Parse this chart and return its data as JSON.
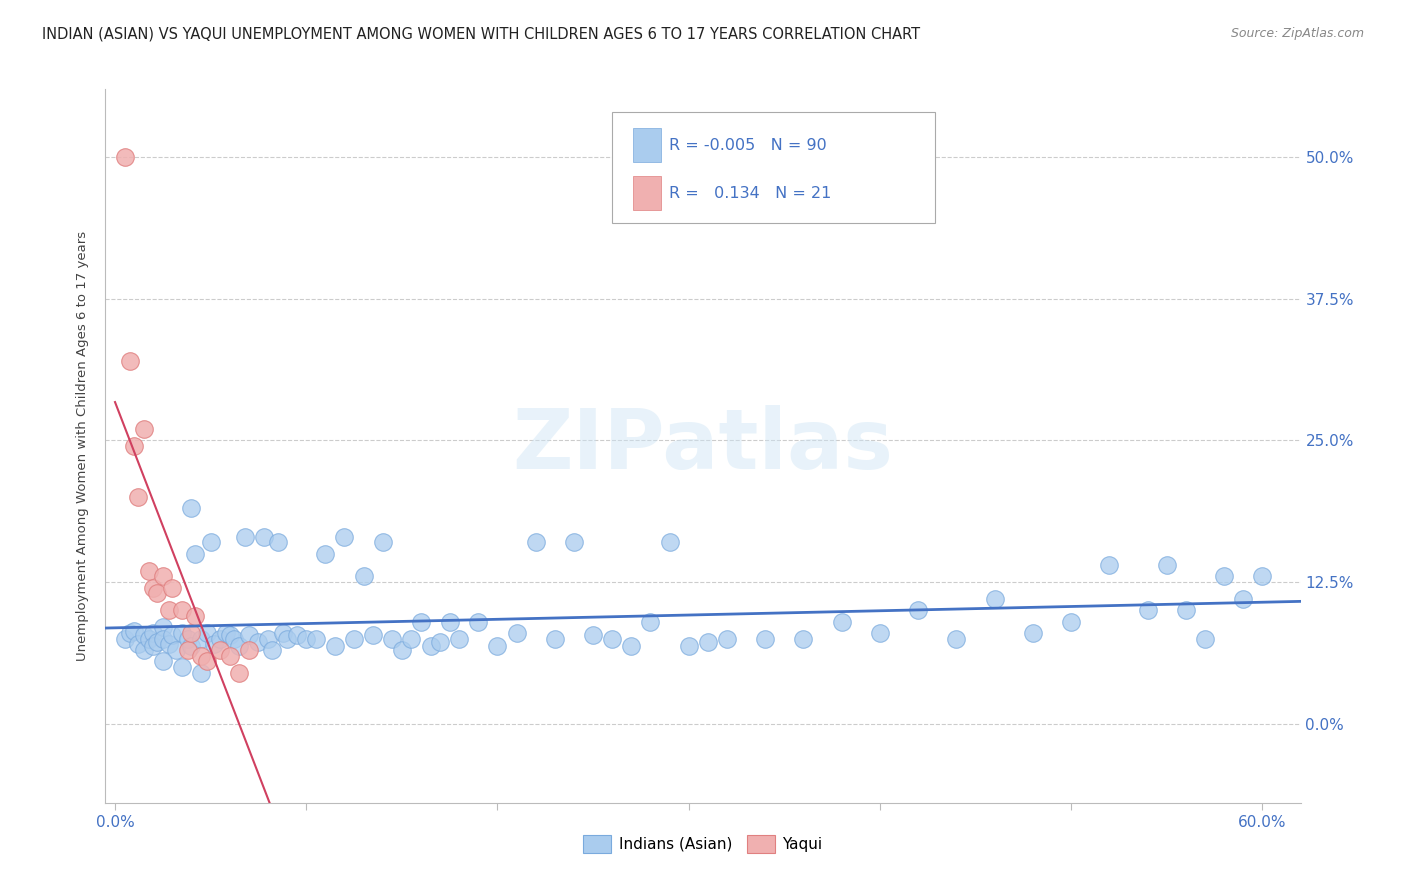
{
  "title": "INDIAN (ASIAN) VS YAQUI UNEMPLOYMENT AMONG WOMEN WITH CHILDREN AGES 6 TO 17 YEARS CORRELATION CHART",
  "source": "Source: ZipAtlas.com",
  "ylabel": "Unemployment Among Women with Children Ages 6 to 17 years",
  "xlim": [
    -0.005,
    0.62
  ],
  "ylim": [
    -0.07,
    0.56
  ],
  "yticks": [
    0.0,
    0.125,
    0.25,
    0.375,
    0.5
  ],
  "ytick_labels": [
    "0.0%",
    "12.5%",
    "25.0%",
    "37.5%",
    "50.0%"
  ],
  "xtick_positions": [
    0.0,
    0.1,
    0.2,
    0.3,
    0.4,
    0.5,
    0.6
  ],
  "xtick_labels_show": [
    "0.0%",
    "",
    "",
    "",
    "",
    "",
    "60.0%"
  ],
  "background_color": "#ffffff",
  "grid_color": "#cccccc",
  "watermark_text": "ZIPatlas",
  "series_asian": {
    "name": "Indians (Asian)",
    "color": "#aaccee",
    "edgecolor": "#7aaadd",
    "trend_color": "#4472c4",
    "x": [
      0.005,
      0.008,
      0.01,
      0.012,
      0.015,
      0.015,
      0.018,
      0.02,
      0.02,
      0.022,
      0.025,
      0.025,
      0.028,
      0.03,
      0.032,
      0.035,
      0.038,
      0.04,
      0.04,
      0.042,
      0.045,
      0.048,
      0.05,
      0.052,
      0.055,
      0.058,
      0.06,
      0.062,
      0.065,
      0.068,
      0.07,
      0.075,
      0.078,
      0.08,
      0.082,
      0.085,
      0.088,
      0.09,
      0.095,
      0.1,
      0.105,
      0.11,
      0.115,
      0.12,
      0.125,
      0.13,
      0.135,
      0.14,
      0.145,
      0.15,
      0.155,
      0.16,
      0.165,
      0.17,
      0.175,
      0.18,
      0.19,
      0.2,
      0.21,
      0.22,
      0.23,
      0.24,
      0.25,
      0.26,
      0.27,
      0.28,
      0.29,
      0.3,
      0.31,
      0.32,
      0.34,
      0.36,
      0.38,
      0.4,
      0.42,
      0.44,
      0.46,
      0.48,
      0.5,
      0.52,
      0.54,
      0.55,
      0.56,
      0.57,
      0.58,
      0.59,
      0.6,
      0.025,
      0.035,
      0.045
    ],
    "y": [
      0.075,
      0.08,
      0.082,
      0.07,
      0.078,
      0.065,
      0.075,
      0.08,
      0.068,
      0.072,
      0.085,
      0.075,
      0.07,
      0.078,
      0.065,
      0.08,
      0.075,
      0.19,
      0.068,
      0.15,
      0.075,
      0.08,
      0.16,
      0.07,
      0.075,
      0.08,
      0.078,
      0.075,
      0.068,
      0.165,
      0.078,
      0.072,
      0.165,
      0.075,
      0.065,
      0.16,
      0.08,
      0.075,
      0.078,
      0.075,
      0.075,
      0.15,
      0.068,
      0.165,
      0.075,
      0.13,
      0.078,
      0.16,
      0.075,
      0.065,
      0.075,
      0.09,
      0.068,
      0.072,
      0.09,
      0.075,
      0.09,
      0.068,
      0.08,
      0.16,
      0.075,
      0.16,
      0.078,
      0.075,
      0.068,
      0.09,
      0.16,
      0.068,
      0.072,
      0.075,
      0.075,
      0.075,
      0.09,
      0.08,
      0.1,
      0.075,
      0.11,
      0.08,
      0.09,
      0.14,
      0.1,
      0.14,
      0.1,
      0.075,
      0.13,
      0.11,
      0.13,
      0.055,
      0.05,
      0.045
    ]
  },
  "series_yaqui": {
    "name": "Yaqui",
    "color": "#f0b0b0",
    "edgecolor": "#e08080",
    "trend_color": "#d04060",
    "x": [
      0.005,
      0.008,
      0.01,
      0.012,
      0.015,
      0.018,
      0.02,
      0.022,
      0.025,
      0.028,
      0.03,
      0.035,
      0.038,
      0.04,
      0.042,
      0.045,
      0.048,
      0.055,
      0.06,
      0.065,
      0.07
    ],
    "y": [
      0.5,
      0.32,
      0.245,
      0.2,
      0.26,
      0.135,
      0.12,
      0.115,
      0.13,
      0.1,
      0.12,
      0.1,
      0.065,
      0.08,
      0.095,
      0.06,
      0.055,
      0.065,
      0.06,
      0.045,
      0.065
    ]
  },
  "legend": {
    "R1": "-0.005",
    "N1": "90",
    "R2": "0.134",
    "N2": "21",
    "color1": "#aaccee",
    "color2": "#f0b0b0"
  },
  "title_fontsize": 10.5,
  "axis_fontsize": 9.5,
  "tick_fontsize": 11,
  "title_color": "#222222",
  "axis_label_color": "#444444",
  "tick_color": "#4472c4"
}
